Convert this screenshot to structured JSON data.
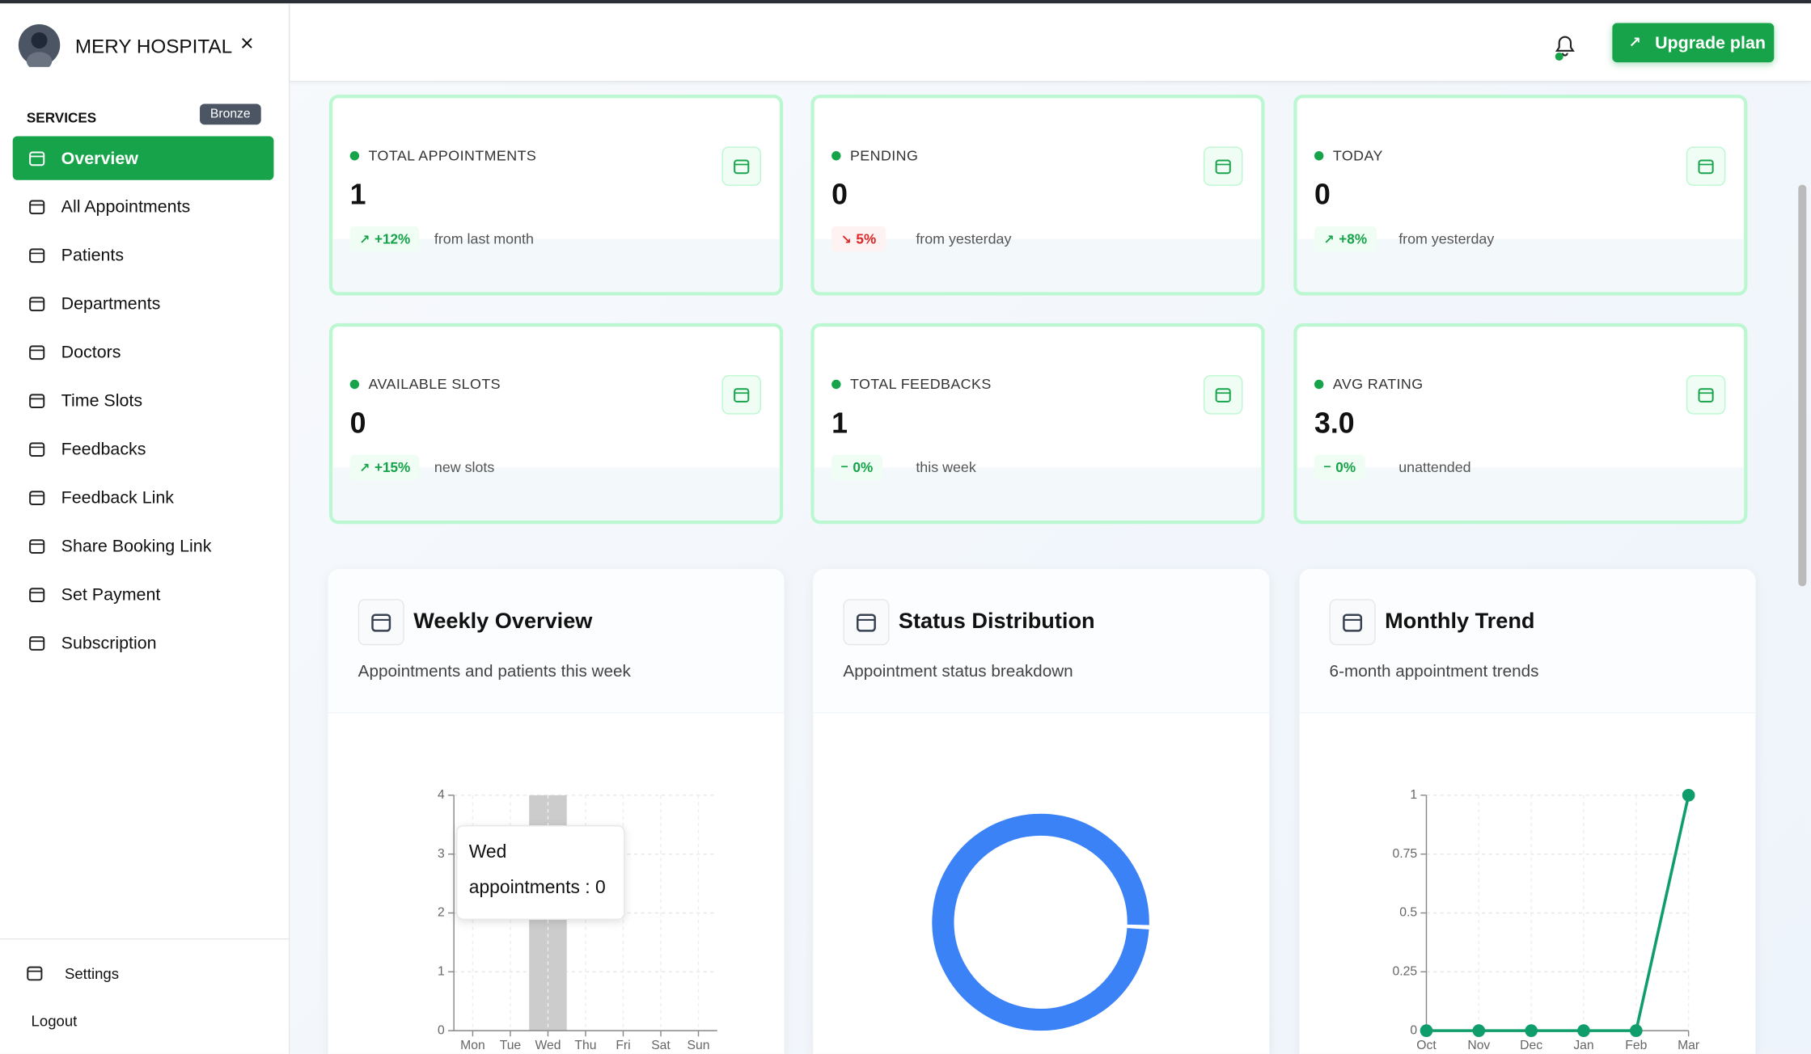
{
  "sidebar": {
    "title": "MERY HOSPITAL",
    "section": "SERVICES",
    "badge": "Bronze",
    "items": [
      "Overview",
      "All Appointments",
      "Patients",
      "Departments",
      "Doctors",
      "Time Slots",
      "Feedbacks",
      "Feedback Link",
      "Share Booking Link",
      "Set Payment",
      "Subscription"
    ],
    "footer": [
      "Settings",
      "Logout"
    ]
  },
  "header": {
    "button": "Upgrade plan"
  },
  "stats": [
    {
      "label": "TOTAL APPOINTMENTS",
      "value": "1",
      "change": "+12%",
      "note": "from last month",
      "trend": "up"
    },
    {
      "label": "PENDING",
      "value": "0",
      "change": "5%",
      "note": "from yesterday",
      "trend": "down"
    },
    {
      "label": "TODAY",
      "value": "0",
      "change": "+8%",
      "note": "from yesterday",
      "trend": "up"
    },
    {
      "label": "AVAILABLE SLOTS",
      "value": "0",
      "change": "+15%",
      "note": "new slots",
      "trend": "up"
    },
    {
      "label": "TOTAL FEEDBACKS",
      "value": "1",
      "change": "0%",
      "note": "this week",
      "trend": "flat"
    },
    {
      "label": "AVG RATING",
      "value": "3.0",
      "change": "0%",
      "note": "unattended",
      "trend": "flat"
    }
  ],
  "chart_data": [
    {
      "type": "bar",
      "title": "Weekly Overview",
      "subtitle": "Appointments and patients this week",
      "categories": [
        "Mon",
        "Tue",
        "Wed",
        "Thu",
        "Fri",
        "Sat",
        "Sun"
      ],
      "series": [
        {
          "name": "appointments",
          "color": "#16a34a",
          "values": [
            0,
            0,
            0,
            0,
            0,
            0,
            0
          ]
        }
      ],
      "ylim": [
        0,
        4
      ],
      "yticks": [
        0,
        1,
        2,
        3,
        4
      ],
      "grid": true,
      "tooltip": {
        "title": "Wed",
        "text": "appointments : 0"
      }
    },
    {
      "type": "pie",
      "title": "Status Distribution",
      "subtitle": "Appointment status breakdown",
      "values": [
        1
      ],
      "color": "#3b82f6"
    },
    {
      "type": "line",
      "title": "Monthly Trend",
      "subtitle": "6-month appointment trends",
      "categories": [
        "Oct",
        "Nov",
        "Dec",
        "Jan",
        "Feb",
        "Mar"
      ],
      "series": [
        {
          "name": "appointments",
          "color": "#0f9d6b",
          "values": [
            0,
            0,
            0,
            0,
            0,
            1
          ]
        }
      ],
      "ylim": [
        0,
        1
      ],
      "yticks": [
        0,
        0.25,
        0.5,
        0.75,
        1
      ],
      "grid": true
    }
  ]
}
